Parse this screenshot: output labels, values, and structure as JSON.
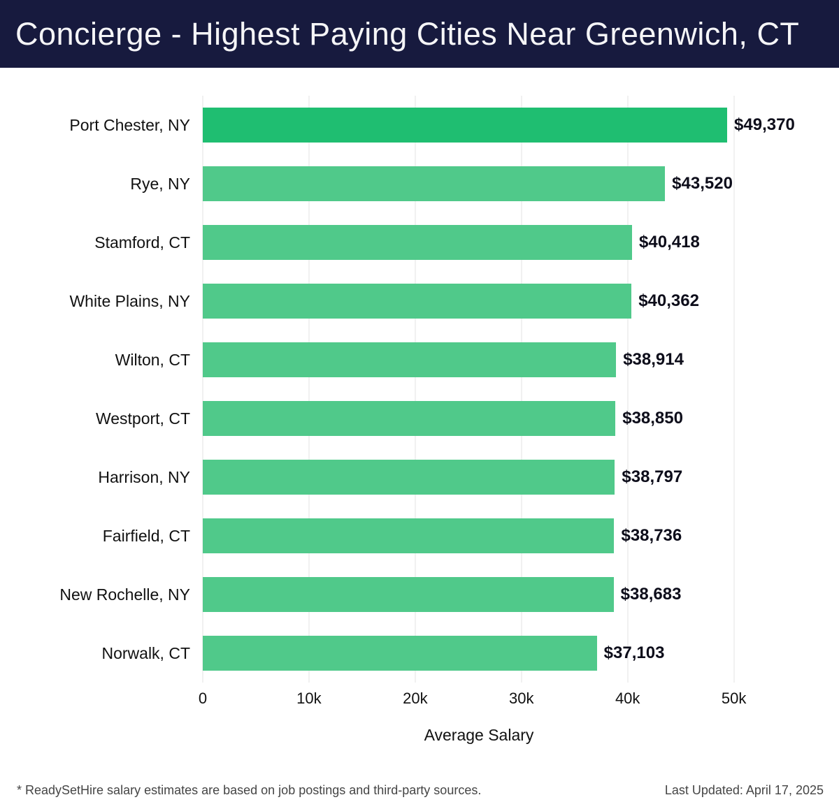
{
  "header": {
    "title": "Concierge - Highest Paying Cities Near Greenwich, CT",
    "bg_color": "#171a3e",
    "text_color": "#f5f5f7"
  },
  "chart_data": {
    "type": "bar",
    "orientation": "horizontal",
    "title": "Concierge - Highest Paying Cities Near Greenwich, CT",
    "categories": [
      "Port Chester, NY",
      "Rye, NY",
      "Stamford, CT",
      "White Plains, NY",
      "Wilton, CT",
      "Westport, CT",
      "Harrison, NY",
      "Fairfield, CT",
      "New Rochelle, NY",
      "Norwalk, CT"
    ],
    "values": [
      49370,
      43520,
      40418,
      40362,
      38914,
      38850,
      38797,
      38736,
      38683,
      37103
    ],
    "value_labels": [
      "$49,370",
      "$43,520",
      "$40,418",
      "$40,362",
      "$38,914",
      "$38,850",
      "$38,797",
      "$38,736",
      "$38,683",
      "$37,103"
    ],
    "xlabel": "Average Salary",
    "ylabel": "",
    "x_ticks": [
      "0",
      "10k",
      "20k",
      "30k",
      "40k",
      "50k"
    ],
    "x_tick_values": [
      0,
      10000,
      20000,
      30000,
      40000,
      50000
    ],
    "xlim": [
      0,
      52000
    ],
    "grid": "vertical",
    "legend": "none",
    "bar_color": "#50c98a",
    "highlight_color": "#1fbe71",
    "highlight_index": 0
  },
  "footer": {
    "note": "* ReadySetHire salary estimates are based on job postings and third-party sources.",
    "updated": "Last Updated: April 17, 2025"
  }
}
